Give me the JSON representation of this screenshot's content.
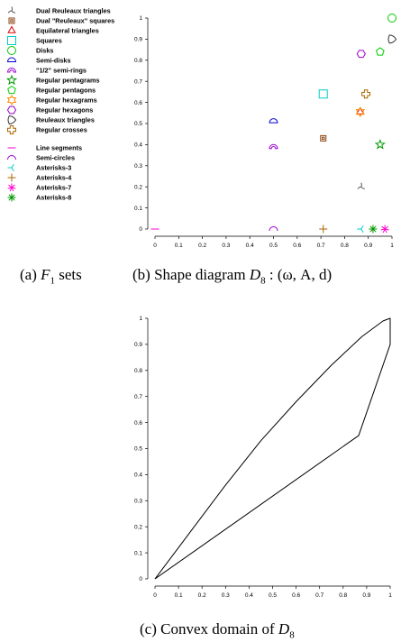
{
  "legend": {
    "items": [
      {
        "label": "Dual Reuleaux triangles",
        "marker": "three-prong",
        "color": "#555555"
      },
      {
        "label": "Dual \"Reuleaux\" squares",
        "marker": "square-small",
        "color": "#8b4513"
      },
      {
        "label": "Equilateral triangles",
        "marker": "triangle",
        "color": "#dd0000"
      },
      {
        "label": "Squares",
        "marker": "square",
        "color": "#00cccc"
      },
      {
        "label": "Disks",
        "marker": "circle",
        "color": "#00cc00"
      },
      {
        "label": "Semi-disks",
        "marker": "semi-disk",
        "color": "#0000cc"
      },
      {
        "label": "\"1/2\" semi-rings",
        "marker": "semi-ring",
        "color": "#9900cc"
      },
      {
        "label": "Regular pentagrams",
        "marker": "star",
        "color": "#009900"
      },
      {
        "label": "Regular pentagons",
        "marker": "pentagon",
        "color": "#00cc00"
      },
      {
        "label": "Regular hexagrams",
        "marker": "hexagram",
        "color": "#ff8800"
      },
      {
        "label": "Regular hexagons",
        "marker": "hexagon",
        "color": "#9900cc"
      },
      {
        "label": "Reuleaux triangles",
        "marker": "reuleaux",
        "color": "#333333"
      },
      {
        "label": "Regular crosses",
        "marker": "cross",
        "color": "#aa6600"
      },
      {
        "label": "Line segments",
        "marker": "dash",
        "color": "#ff00cc"
      },
      {
        "label": "Semi-circles",
        "marker": "semi-circle",
        "color": "#9900cc"
      },
      {
        "label": "Asterisks-3",
        "marker": "asterisk3",
        "color": "#00cccc"
      },
      {
        "label": "Asterisks-4",
        "marker": "plus",
        "color": "#aa6600"
      },
      {
        "label": "Asterisks-7",
        "marker": "asterisk7",
        "color": "#ff00cc"
      },
      {
        "label": "Asterisks-8",
        "marker": "asterisk8",
        "color": "#009900"
      }
    ]
  },
  "captions": {
    "a_prefix": "(a) ",
    "a_suffix": " sets",
    "a_symbol": "F",
    "a_sub": "1",
    "b_prefix": "(b) Shape diagram ",
    "b_symbol": "D",
    "b_sub": "8",
    "b_suffix": " : (ω, A, d)",
    "c_prefix": "(c) Convex domain of ",
    "c_symbol": "D",
    "c_sub": "8"
  },
  "chart_data": [
    {
      "type": "scatter",
      "xlim": [
        0,
        1
      ],
      "ylim": [
        0,
        1
      ],
      "x_ticks": [
        "0",
        "0.1",
        "0.2",
        "0.3",
        "0.4",
        "0.5",
        "0.6",
        "0.7",
        "0.8",
        "0.9",
        "1"
      ],
      "y_ticks": [
        "0",
        "0.1",
        "0.2",
        "0.3",
        "0.4",
        "0.5",
        "0.6",
        "0.7",
        "0.8",
        "0.9",
        "1"
      ],
      "points": [
        {
          "series": "Line segments",
          "x": 0,
          "y": 0,
          "marker": "dash",
          "color": "#ff00cc"
        },
        {
          "series": "Semi-circles",
          "x": 0.5,
          "y": 0,
          "marker": "semi-circle",
          "color": "#9900cc"
        },
        {
          "series": "Asterisks-4",
          "x": 0.71,
          "y": 0,
          "marker": "plus",
          "color": "#aa6600"
        },
        {
          "series": "Asterisks-3",
          "x": 0.87,
          "y": 0,
          "marker": "asterisk3",
          "color": "#00cccc"
        },
        {
          "series": "Asterisks-8",
          "x": 0.92,
          "y": 0,
          "marker": "asterisk8",
          "color": "#009900"
        },
        {
          "series": "Asterisks-7",
          "x": 0.97,
          "y": 0,
          "marker": "asterisk7",
          "color": "#ff00cc"
        },
        {
          "series": "Dual Reuleaux triangles",
          "x": 0.87,
          "y": 0.2,
          "marker": "three-prong",
          "color": "#555555"
        },
        {
          "series": "Semi-disks",
          "x": 0.5,
          "y": 0.51,
          "marker": "semi-disk",
          "color": "#0000cc"
        },
        {
          "series": "\"1/2\" semi-rings",
          "x": 0.5,
          "y": 0.39,
          "marker": "semi-ring",
          "color": "#9900cc"
        },
        {
          "series": "Dual \"Reuleaux\" squares",
          "x": 0.71,
          "y": 0.43,
          "marker": "square-small",
          "color": "#8b4513"
        },
        {
          "series": "Squares",
          "x": 0.71,
          "y": 0.64,
          "marker": "square",
          "color": "#00cccc"
        },
        {
          "series": "Regular pentagrams",
          "x": 0.95,
          "y": 0.4,
          "marker": "star",
          "color": "#009900"
        },
        {
          "series": "Equilateral triangles",
          "x": 0.866,
          "y": 0.555,
          "marker": "triangle",
          "color": "#dd0000"
        },
        {
          "series": "Regular hexagrams",
          "x": 0.866,
          "y": 0.555,
          "marker": "hexagram",
          "color": "#ff8800"
        },
        {
          "series": "Regular crosses",
          "x": 0.89,
          "y": 0.64,
          "marker": "cross",
          "color": "#aa6600"
        },
        {
          "series": "Regular hexagons",
          "x": 0.87,
          "y": 0.83,
          "marker": "hexagon",
          "color": "#9900cc"
        },
        {
          "series": "Regular pentagons",
          "x": 0.95,
          "y": 0.84,
          "marker": "pentagon",
          "color": "#00cc00"
        },
        {
          "series": "Reuleaux triangles",
          "x": 1.0,
          "y": 0.9,
          "marker": "reuleaux",
          "color": "#333333"
        },
        {
          "series": "Disks",
          "x": 1.0,
          "y": 1.0,
          "marker": "circle",
          "color": "#00cc00"
        }
      ]
    },
    {
      "type": "line",
      "xlim": [
        0,
        1
      ],
      "ylim": [
        0,
        1
      ],
      "x_ticks": [
        "0",
        "0.1",
        "0.2",
        "0.3",
        "0.4",
        "0.5",
        "0.6",
        "0.7",
        "0.8",
        "0.9",
        "1"
      ],
      "y_ticks": [
        "0",
        "0.1",
        "0.2",
        "0.3",
        "0.4",
        "0.5",
        "0.6",
        "0.7",
        "0.8",
        "0.9",
        "1"
      ],
      "boundary": [
        {
          "x": 0,
          "y": 0
        },
        {
          "x": 0.05,
          "y": 0.06
        },
        {
          "x": 0.15,
          "y": 0.18
        },
        {
          "x": 0.3,
          "y": 0.36
        },
        {
          "x": 0.45,
          "y": 0.53
        },
        {
          "x": 0.6,
          "y": 0.68
        },
        {
          "x": 0.75,
          "y": 0.82
        },
        {
          "x": 0.88,
          "y": 0.93
        },
        {
          "x": 0.97,
          "y": 0.99
        },
        {
          "x": 1.0,
          "y": 1.0
        },
        {
          "x": 1.0,
          "y": 0.9
        },
        {
          "x": 0.866,
          "y": 0.55
        },
        {
          "x": 0,
          "y": 0
        }
      ]
    }
  ]
}
